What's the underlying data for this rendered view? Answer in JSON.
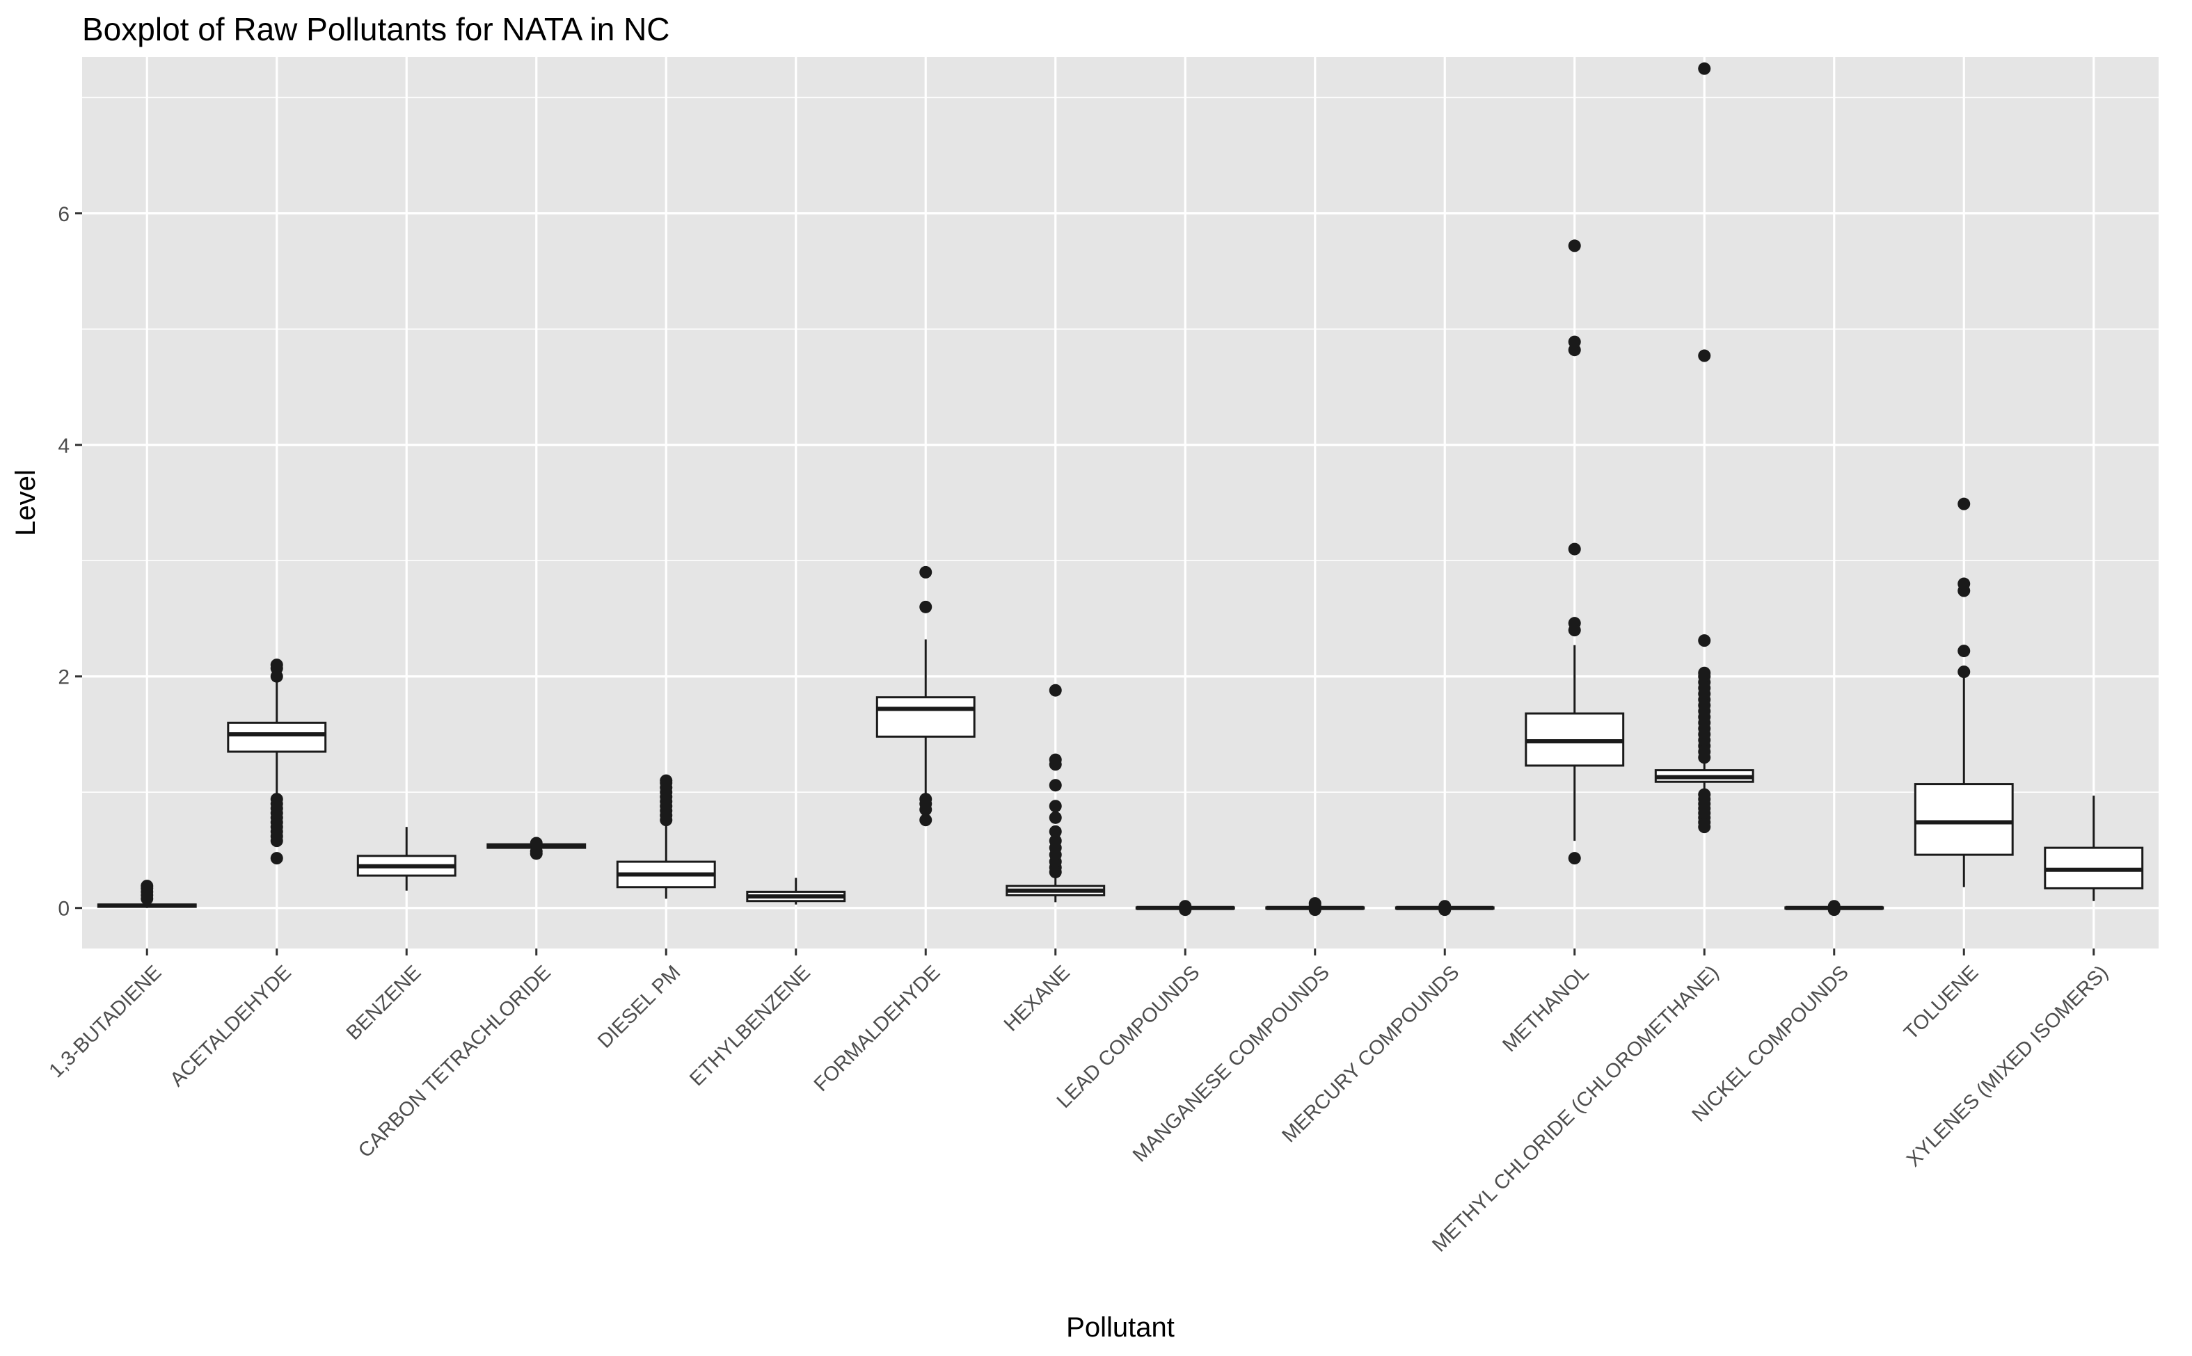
{
  "chart_data": {
    "type": "boxplot",
    "title": "Boxplot of Raw Pollutants for NATA in NC",
    "xlabel": "Pollutant",
    "ylabel": "Level",
    "ylim": [
      -0.35,
      7.35
    ],
    "yticks": [
      0,
      2,
      4,
      6
    ],
    "grid": true,
    "legend": "none",
    "colors": {
      "panel": "#e5e5e5",
      "grid": "#ffffff",
      "box_fill": "#ffffff",
      "box_line": "#1a1a1a",
      "outlier": "#1a1a1a",
      "tick_text": "#4d4d4d"
    },
    "categories": [
      "1,3-BUTADIENE",
      "ACETALDEHYDE",
      "BENZENE",
      "CARBON TETRACHLORIDE",
      "DIESEL PM",
      "ETHYLBENZENE",
      "FORMALDEHYDE",
      "HEXANE",
      "LEAD COMPOUNDS",
      "MANGANESE COMPOUNDS",
      "MERCURY COMPOUNDS",
      "METHANOL",
      "METHYL CHLORIDE (CHLOROMETHANE)",
      "NICKEL COMPOUNDS",
      "TOLUENE",
      "XYLENES (MIXED ISOMERS)"
    ],
    "boxes": [
      {
        "low": 0.0,
        "q1": 0.01,
        "median": 0.02,
        "q3": 0.03,
        "high": 0.05,
        "outliers": [
          0.08,
          0.11,
          0.14,
          0.17,
          0.19
        ]
      },
      {
        "low": 0.98,
        "q1": 1.35,
        "median": 1.5,
        "q3": 1.6,
        "high": 1.97,
        "outliers": [
          0.43,
          0.58,
          0.62,
          0.66,
          0.7,
          0.74,
          0.78,
          0.82,
          0.86,
          0.9,
          0.94,
          2.0,
          2.07,
          2.1
        ]
      },
      {
        "low": 0.15,
        "q1": 0.28,
        "median": 0.36,
        "q3": 0.45,
        "high": 0.7,
        "outliers": []
      },
      {
        "low": 0.5,
        "q1": 0.52,
        "median": 0.53,
        "q3": 0.55,
        "high": 0.55,
        "outliers": [
          0.47,
          0.49,
          0.56
        ]
      },
      {
        "low": 0.08,
        "q1": 0.18,
        "median": 0.29,
        "q3": 0.4,
        "high": 0.73,
        "outliers": [
          0.76,
          0.8,
          0.84,
          0.88,
          0.92,
          0.96,
          1.0,
          1.04,
          1.08,
          1.1
        ]
      },
      {
        "low": 0.03,
        "q1": 0.06,
        "median": 0.1,
        "q3": 0.14,
        "high": 0.26,
        "outliers": []
      },
      {
        "low": 0.96,
        "q1": 1.48,
        "median": 1.72,
        "q3": 1.82,
        "high": 2.32,
        "outliers": [
          0.76,
          0.85,
          0.9,
          0.94,
          2.6,
          2.9
        ]
      },
      {
        "low": 0.05,
        "q1": 0.11,
        "median": 0.15,
        "q3": 0.19,
        "high": 0.28,
        "outliers": [
          0.31,
          0.35,
          0.4,
          0.46,
          0.52,
          0.58,
          0.66,
          0.78,
          0.88,
          1.06,
          1.24,
          1.28,
          1.88
        ]
      },
      {
        "low": -0.01,
        "q1": -0.005,
        "median": 0.0,
        "q3": 0.005,
        "high": 0.01,
        "outliers": [
          -0.015,
          0.015
        ]
      },
      {
        "low": -0.01,
        "q1": -0.005,
        "median": 0.0,
        "q3": 0.005,
        "high": 0.01,
        "outliers": [
          -0.015,
          0.02,
          0.04
        ]
      },
      {
        "low": -0.01,
        "q1": -0.005,
        "median": 0.0,
        "q3": 0.005,
        "high": 0.01,
        "outliers": [
          -0.015,
          0.015
        ]
      },
      {
        "low": 0.58,
        "q1": 1.23,
        "median": 1.44,
        "q3": 1.68,
        "high": 2.27,
        "outliers": [
          0.43,
          2.4,
          2.46,
          3.1,
          4.82,
          4.89,
          5.72
        ]
      },
      {
        "low": 1.03,
        "q1": 1.09,
        "median": 1.13,
        "q3": 1.19,
        "high": 1.27,
        "outliers": [
          0.7,
          0.74,
          0.78,
          0.82,
          0.86,
          0.9,
          0.94,
          0.98,
          1.3,
          1.35,
          1.4,
          1.45,
          1.5,
          1.55,
          1.6,
          1.65,
          1.7,
          1.75,
          1.8,
          1.85,
          1.9,
          1.95,
          2.0,
          2.03,
          2.31,
          4.77,
          7.25
        ]
      },
      {
        "low": -0.01,
        "q1": -0.005,
        "median": 0.0,
        "q3": 0.005,
        "high": 0.01,
        "outliers": [
          -0.015,
          0.015
        ]
      },
      {
        "low": 0.18,
        "q1": 0.46,
        "median": 0.74,
        "q3": 1.07,
        "high": 1.99,
        "outliers": [
          2.04,
          2.22,
          2.74,
          2.8,
          3.49
        ]
      },
      {
        "low": 0.06,
        "q1": 0.17,
        "median": 0.33,
        "q3": 0.52,
        "high": 0.97,
        "outliers": []
      }
    ]
  }
}
